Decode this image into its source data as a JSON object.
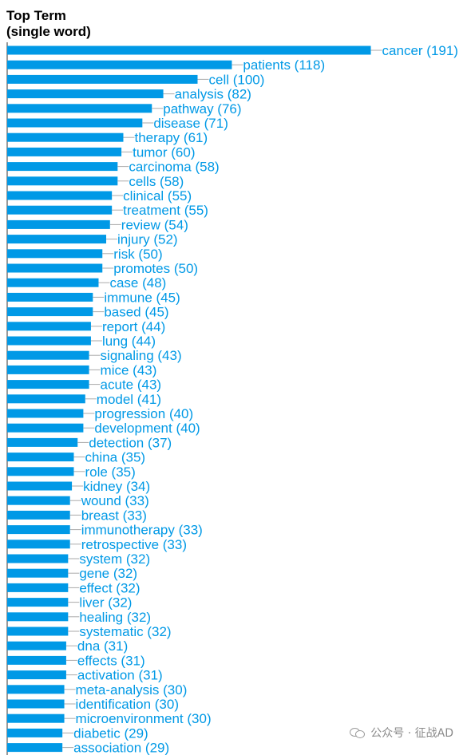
{
  "chart_data": {
    "type": "bar",
    "orientation": "horizontal",
    "title": "Top Term\n(single word)",
    "categories": [
      "cancer",
      "patients",
      "cell",
      "analysis",
      "pathway",
      "disease",
      "therapy",
      "tumor",
      "carcinoma",
      "cells",
      "clinical",
      "treatment",
      "review",
      "injury",
      "risk",
      "promotes",
      "case",
      "immune",
      "based",
      "report",
      "lung",
      "signaling",
      "mice",
      "acute",
      "model",
      "progression",
      "development",
      "detection",
      "china",
      "role",
      "kidney",
      "wound",
      "breast",
      "immunotherapy",
      "retrospective",
      "system",
      "gene",
      "effect",
      "liver",
      "healing",
      "systematic",
      "dna",
      "effects",
      "activation",
      "meta-analysis",
      "identification",
      "microenvironment",
      "diabetic",
      "association"
    ],
    "values": [
      191,
      118,
      100,
      82,
      76,
      71,
      61,
      60,
      58,
      58,
      55,
      55,
      54,
      52,
      50,
      50,
      48,
      45,
      45,
      44,
      44,
      43,
      43,
      43,
      41,
      40,
      40,
      37,
      35,
      35,
      34,
      33,
      33,
      33,
      33,
      32,
      32,
      32,
      32,
      32,
      32,
      31,
      31,
      31,
      30,
      30,
      30,
      29,
      29
    ],
    "bar_color": "#0099e6",
    "label_color": "#0099e6"
  },
  "watermark": {
    "text": "公众号 · 征战AD",
    "icon": "wechat-icon"
  }
}
